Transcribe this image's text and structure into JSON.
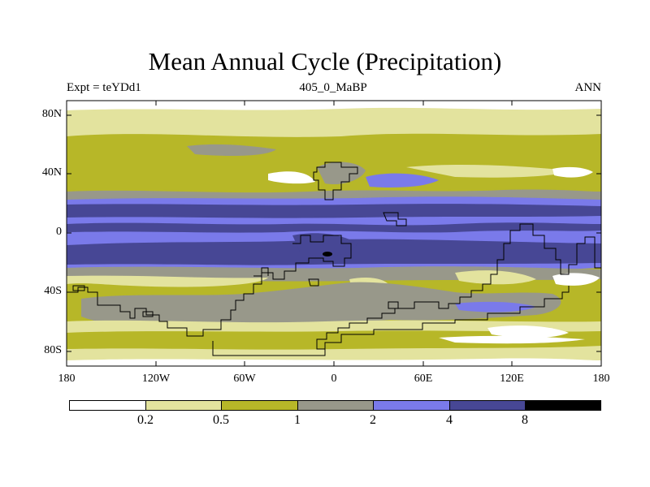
{
  "title": "Mean Annual Cycle (Precipitation)",
  "left_label": "Expt = teYDd1",
  "center_label": "405_0_MaBP",
  "right_label": "ANN",
  "map": {
    "projection": "cylindrical equidistant",
    "lon_range": [
      -180,
      180
    ],
    "lat_range": [
      -90,
      90
    ],
    "lat_ticks": [
      "80N",
      "40N",
      "0",
      "40S",
      "80S"
    ],
    "lon_ticks": [
      "180",
      "120W",
      "60W",
      "0",
      "60E",
      "120E",
      "180"
    ]
  },
  "colorbar": {
    "levels": [
      "0.2",
      "0.5",
      "1",
      "2",
      "4",
      "8"
    ],
    "colors": [
      "#ffffff",
      "#e3e39e",
      "#b7b728",
      "#98988a",
      "#7a7aea",
      "#474795",
      "#000000"
    ]
  }
}
